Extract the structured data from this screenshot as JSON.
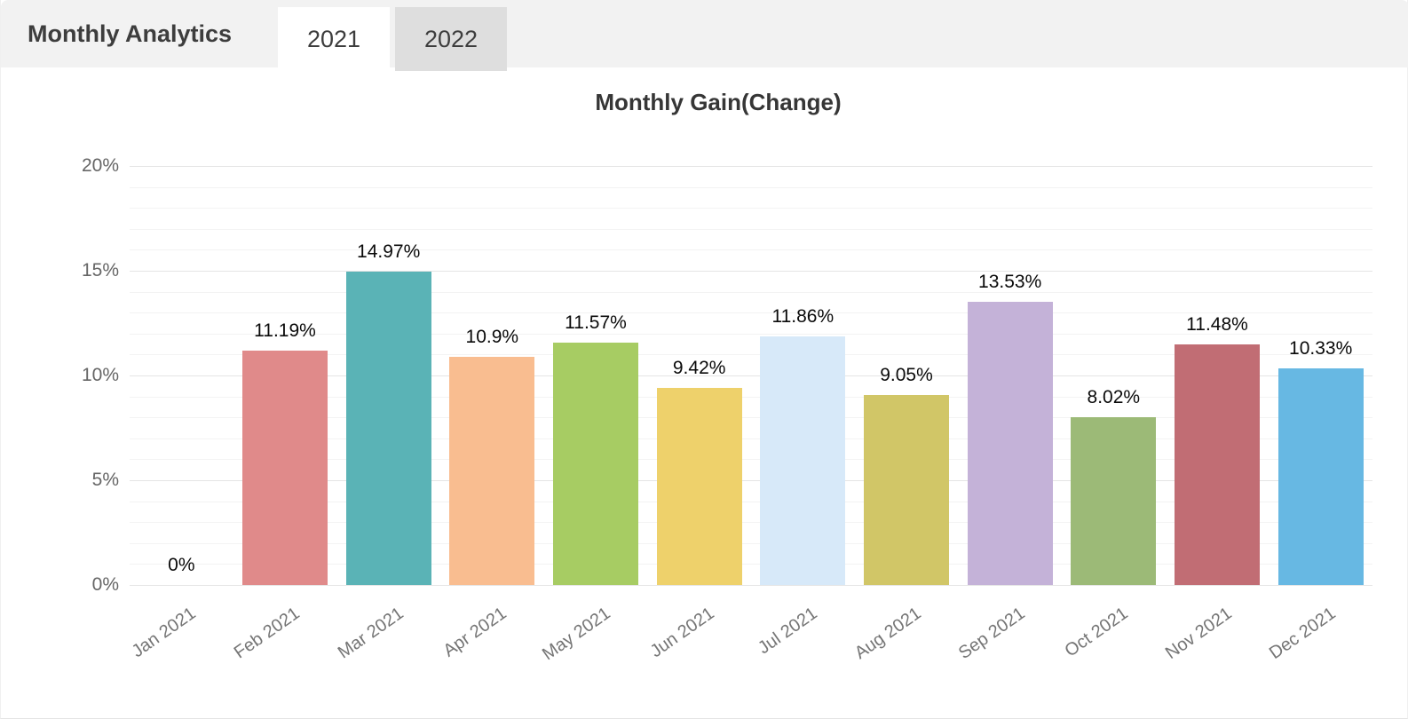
{
  "header": {
    "title": "Monthly Analytics",
    "tabs": [
      {
        "label": "2021",
        "active": true
      },
      {
        "label": "2022",
        "active": false
      }
    ]
  },
  "chart_data": {
    "type": "bar",
    "title": "Monthly Gain(Change)",
    "categories": [
      "Jan 2021",
      "Feb 2021",
      "Mar 2021",
      "Apr 2021",
      "May 2021",
      "Jun 2021",
      "Jul 2021",
      "Aug 2021",
      "Sep 2021",
      "Oct 2021",
      "Nov 2021",
      "Dec 2021"
    ],
    "values": [
      0,
      11.19,
      14.97,
      10.9,
      11.57,
      9.42,
      11.86,
      9.05,
      13.53,
      8.02,
      11.48,
      10.33
    ],
    "data_labels": [
      "0%",
      "11.19%",
      "14.97%",
      "10.9%",
      "11.57%",
      "9.42%",
      "11.86%",
      "9.05%",
      "13.53%",
      "8.02%",
      "11.48%",
      "10.33%"
    ],
    "bar_colors": [
      null,
      "#e08a8a",
      "#5ab3b6",
      "#f9bd90",
      "#a7cc63",
      "#eed16b",
      "#d7e9f9",
      "#d1c667",
      "#c4b2d8",
      "#9cba77",
      "#c16d74",
      "#67b8e3"
    ],
    "xlabel": "",
    "ylabel": "",
    "ylim": [
      0,
      20
    ],
    "yticks": [
      0,
      5,
      10,
      15,
      20
    ],
    "ytick_labels": [
      "0%",
      "5%",
      "10%",
      "15%",
      "20%"
    ],
    "minor_grid_step": 1,
    "grid": true,
    "legend": false,
    "colors": {
      "major_grid": "#e5e5e5",
      "minor_grid": "#f3f3f3",
      "ytick_text": "#666666",
      "xtick_text": "#757575",
      "value_text": "#0a0a0a",
      "header_bg": "#f2f2f2",
      "inactive_tab_bg": "#dedede"
    }
  }
}
